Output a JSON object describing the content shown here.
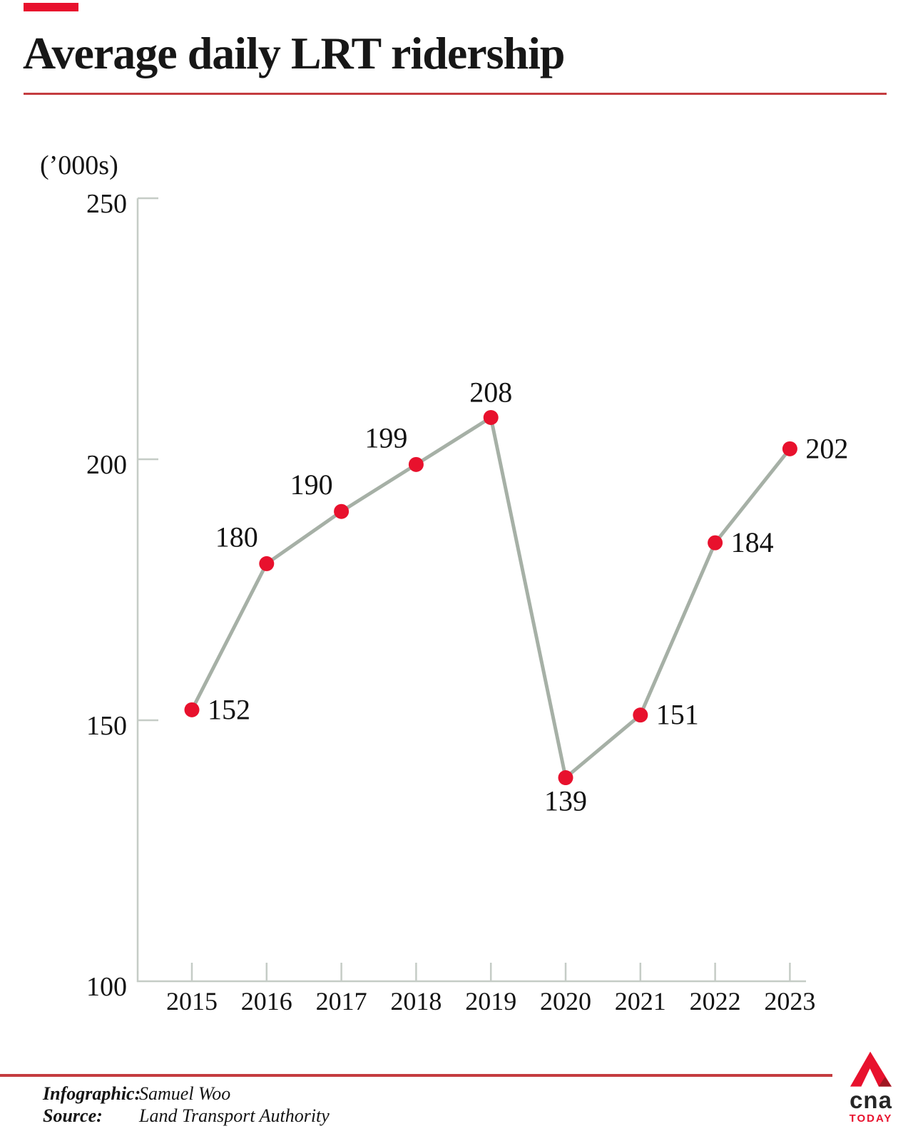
{
  "chart_data": {
    "type": "line",
    "title": "Average daily LRT ridership",
    "unit_label": "(’000s)",
    "categories": [
      "2015",
      "2016",
      "2017",
      "2018",
      "2019",
      "2020",
      "2021",
      "2022",
      "2023"
    ],
    "values": [
      152,
      180,
      190,
      199,
      208,
      139,
      151,
      184,
      202
    ],
    "xlabel": "",
    "ylabel": "(’000s)",
    "ylim": [
      100,
      250
    ],
    "yticks": [
      100,
      150,
      200,
      250
    ],
    "grid": false,
    "legend": false,
    "label_placements": [
      "right",
      "above-left",
      "above-left",
      "above-left",
      "above",
      "below",
      "right",
      "right",
      "right"
    ],
    "colors": {
      "line": "#a6b0a6",
      "point": "#e8112d",
      "axis": "#c5ccc6",
      "text": "#121212",
      "accent_rule": "#c43c40"
    }
  },
  "footer": {
    "infographic_label": "Infographic:",
    "infographic_value": "Samuel Woo",
    "source_label": "Source:",
    "source_value": "Land Transport Authority"
  },
  "logo": {
    "brand": "cna",
    "sub": "TODAY"
  }
}
